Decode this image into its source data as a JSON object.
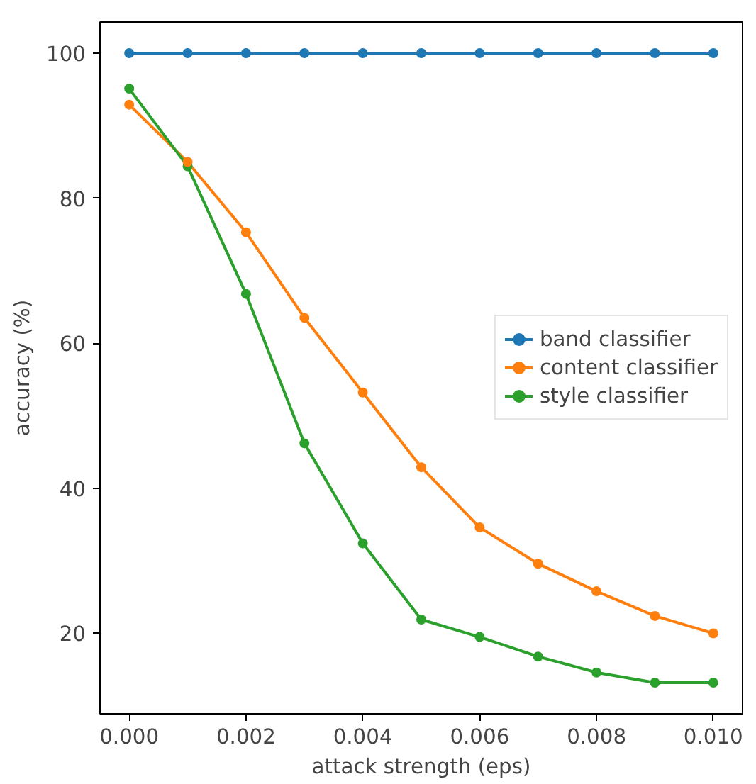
{
  "chart_data": {
    "type": "line",
    "xlabel": "attack strength (eps)",
    "ylabel": "accuracy (%)",
    "x": [
      0,
      0.001,
      0.002,
      0.003,
      0.004,
      0.005,
      0.006,
      0.007,
      0.008,
      0.009,
      0.01
    ],
    "series": [
      {
        "name": "band classifier",
        "color": "#1f77b4",
        "values": [
          100,
          100,
          100,
          100,
          100,
          100,
          100,
          100,
          100,
          100,
          100
        ]
      },
      {
        "name": "content classifier",
        "color": "#ff7f0e",
        "values": [
          92.9,
          85.0,
          75.3,
          63.5,
          53.2,
          42.9,
          34.6,
          29.6,
          25.8,
          22.4,
          20.0
        ]
      },
      {
        "name": "style classifier",
        "color": "#2ca02c",
        "values": [
          95.1,
          84.4,
          66.8,
          46.2,
          32.4,
          21.9,
          19.5,
          16.8,
          14.6,
          13.2,
          13.2
        ]
      }
    ],
    "xlim": [
      -0.0005,
      0.0105
    ],
    "ylim": [
      8.9,
      104.3
    ],
    "xticks": [
      {
        "value": 0,
        "label": "0.000"
      },
      {
        "value": 0.002,
        "label": "0.002"
      },
      {
        "value": 0.004,
        "label": "0.004"
      },
      {
        "value": 0.006,
        "label": "0.006"
      },
      {
        "value": 0.008,
        "label": "0.008"
      },
      {
        "value": 0.01,
        "label": "0.010"
      }
    ],
    "yticks": [
      20,
      40,
      60,
      80,
      100
    ],
    "grid": false,
    "legend": "right",
    "marker": "circle",
    "line_style": "solid"
  }
}
